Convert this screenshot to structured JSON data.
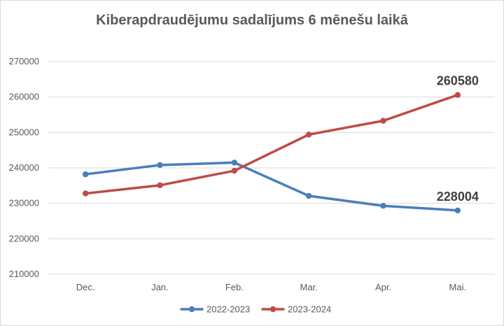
{
  "chart_data": {
    "type": "line",
    "title": "Kiberapdraudējumu sadalījums 6 mēnešu laikā",
    "xlabel": "",
    "ylabel": "",
    "categories": [
      "Dec.",
      "Jan.",
      "Feb.",
      "Mar.",
      "Apr.",
      "Mai."
    ],
    "ylim": [
      210000,
      270000
    ],
    "yticks": [
      210000,
      220000,
      230000,
      240000,
      250000,
      260000,
      270000
    ],
    "grid": true,
    "legend_position": "bottom",
    "series": [
      {
        "name": "2022-2023",
        "color": "#4a7ebb",
        "values": [
          238200,
          240800,
          241500,
          232100,
          229300,
          228004
        ]
      },
      {
        "name": "2023-2024",
        "color": "#be4b48",
        "values": [
          232800,
          235100,
          239200,
          249400,
          253300,
          260580
        ]
      }
    ],
    "data_labels": [
      {
        "series": 1,
        "index": 5,
        "text": "260580"
      },
      {
        "series": 0,
        "index": 5,
        "text": "228004"
      }
    ]
  }
}
